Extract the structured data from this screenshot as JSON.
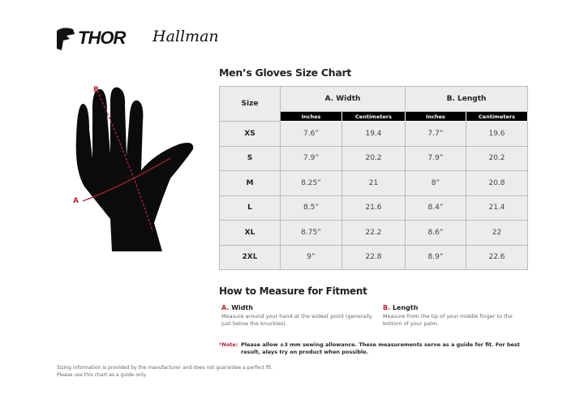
{
  "logos": {
    "thor": "THOR",
    "hallman": "Hallman"
  },
  "title": "Men’s Gloves Size Chart",
  "table": {
    "size_header": "Size",
    "groups": [
      "A. Width",
      "B. Length"
    ],
    "subheaders": [
      "Inches",
      "Centimeters",
      "Inches",
      "Centimeters"
    ],
    "rows": [
      [
        "XS",
        "7.6”",
        "19.4",
        "7.7”",
        "19.6"
      ],
      [
        "S",
        "7.9”",
        "20.2",
        "7.9”",
        "20.2"
      ],
      [
        "M",
        "8.25”",
        "21",
        "8”",
        "20.8"
      ],
      [
        "L",
        "8.5”",
        "21.6",
        "8.4”",
        "21.4"
      ],
      [
        "XL",
        "8.75”",
        "22.2",
        "8.6”",
        "22"
      ],
      [
        "2XL",
        "9”",
        "22.8",
        "8.9”",
        "22.6"
      ]
    ]
  },
  "diagram": {
    "label_a": "A",
    "label_b": "B",
    "accent": "#b3263a"
  },
  "how": {
    "title": "How to Measure for Fitment",
    "width": {
      "letter": "A.",
      "label": "Width",
      "desc": "Measure around your hand at the widest point (generally just below the knuckles)."
    },
    "length": {
      "letter": "B.",
      "label": "Length",
      "desc": "Measure from the tip of your middle finger to the bottom of your palm."
    }
  },
  "note": {
    "label": "*Note:",
    "text": "Please allow ±3 mm sewing allowance. These measurements serve as a guide for fit. For best result, alays try on product when possible."
  },
  "footer": [
    "Sizing information is provided by the manufacturer and does not guarantee a perfect fit.",
    "Please use this chart as a guide only."
  ]
}
